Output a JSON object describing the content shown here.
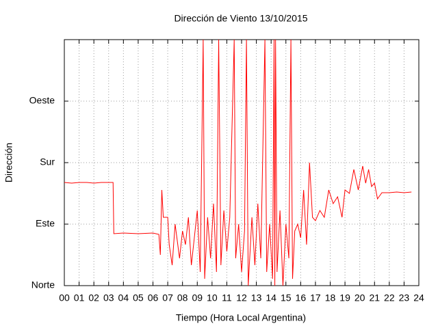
{
  "chart_data": {
    "type": "line",
    "title": "Dirección de Viento 13/10/2015",
    "x_label": "Tiempo (Hora Local Argentina)",
    "y_label": "Dirección",
    "xlim": [
      0,
      24
    ],
    "ylim": [
      0,
      360
    ],
    "xticks": [
      {
        "value": 0,
        "label": "00"
      },
      {
        "value": 1,
        "label": "01"
      },
      {
        "value": 2,
        "label": "02"
      },
      {
        "value": 3,
        "label": "03"
      },
      {
        "value": 4,
        "label": "04"
      },
      {
        "value": 5,
        "label": "05"
      },
      {
        "value": 6,
        "label": "06"
      },
      {
        "value": 7,
        "label": "07"
      },
      {
        "value": 8,
        "label": "08"
      },
      {
        "value": 9,
        "label": "09"
      },
      {
        "value": 10,
        "label": "10"
      },
      {
        "value": 11,
        "label": "11"
      },
      {
        "value": 12,
        "label": "12"
      },
      {
        "value": 13,
        "label": "13"
      },
      {
        "value": 14,
        "label": "14"
      },
      {
        "value": 15,
        "label": "15"
      },
      {
        "value": 16,
        "label": "16"
      },
      {
        "value": 17,
        "label": "17"
      },
      {
        "value": 18,
        "label": "18"
      },
      {
        "value": 19,
        "label": "19"
      },
      {
        "value": 20,
        "label": "20"
      },
      {
        "value": 21,
        "label": "21"
      },
      {
        "value": 22,
        "label": "22"
      },
      {
        "value": 23,
        "label": "23"
      },
      {
        "value": 24,
        "label": "24"
      }
    ],
    "yticks": [
      {
        "value": 0,
        "label": "Norte"
      },
      {
        "value": 90,
        "label": "Este"
      },
      {
        "value": 180,
        "label": "Sur"
      },
      {
        "value": 270,
        "label": "Oeste"
      }
    ],
    "grid": true,
    "series": [
      {
        "color": "#ff0000",
        "x": [
          0,
          0.5,
          1,
          1.5,
          2,
          2.5,
          3,
          3.3,
          3.35,
          4,
          5,
          6,
          6.4,
          6.5,
          6.6,
          6.7,
          7.0,
          7.1,
          7.3,
          7.5,
          7.8,
          8.0,
          8.2,
          8.4,
          8.6,
          8.8,
          9.0,
          9.2,
          9.4,
          9.5,
          9.7,
          9.9,
          10.1,
          10.3,
          10.45,
          10.6,
          10.8,
          11.0,
          11.2,
          11.5,
          11.6,
          11.8,
          12.0,
          12.2,
          12.33,
          12.45,
          12.7,
          12.9,
          13.1,
          13.3,
          13.58,
          13.7,
          13.9,
          14.1,
          14.2,
          14.25,
          14.3,
          14.4,
          14.6,
          14.8,
          15.0,
          15.2,
          15.34,
          15.45,
          15.6,
          15.8,
          16.0,
          16.2,
          16.4,
          16.6,
          16.8,
          17.0,
          17.3,
          17.6,
          17.9,
          18.2,
          18.5,
          18.8,
          19.0,
          19.3,
          19.6,
          19.9,
          20.2,
          20.4,
          20.6,
          20.8,
          21.0,
          21.2,
          21.5,
          22,
          22.5,
          23,
          23.5
        ],
        "values": [
          151,
          150,
          151,
          151,
          150,
          151,
          151,
          151,
          76,
          77,
          76,
          77,
          75,
          45,
          140,
          100,
          100,
          60,
          30,
          90,
          40,
          80,
          60,
          100,
          30,
          70,
          110,
          20,
          360,
          10,
          100,
          40,
          120,
          20,
          360,
          30,
          110,
          50,
          100,
          360,
          40,
          90,
          20,
          80,
          360,
          0,
          100,
          30,
          120,
          40,
          360,
          20,
          90,
          10,
          360,
          0,
          360,
          20,
          110,
          0,
          90,
          40,
          360,
          10,
          80,
          90,
          70,
          140,
          60,
          180,
          100,
          95,
          110,
          100,
          140,
          120,
          130,
          100,
          140,
          135,
          170,
          140,
          175,
          150,
          170,
          145,
          150,
          127,
          136,
          136,
          137,
          136,
          137
        ]
      }
    ]
  }
}
